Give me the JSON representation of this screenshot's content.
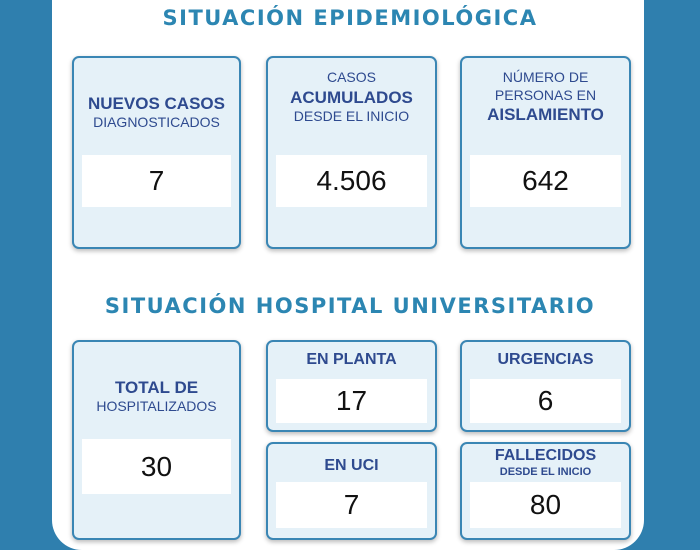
{
  "epidemiological": {
    "title": "SITUACIÓN EPIDEMIOLÓGICA",
    "cards": {
      "nuevos": {
        "line1": "NUEVOS CASOS",
        "line2": "DIAGNOSTICADOS",
        "value": "7"
      },
      "acumulados": {
        "line1": "CASOS",
        "line2": "ACUMULADOS",
        "line3": "DESDE EL INICIO",
        "value": "4.506"
      },
      "aislamiento": {
        "line1": "NÚMERO DE",
        "line2": "PERSONAS EN",
        "line3": "AISLAMIENTO",
        "value": "642"
      }
    }
  },
  "hospital": {
    "title": "SITUACIÓN HOSPITAL UNIVERSITARIO",
    "cards": {
      "total": {
        "line1": "TOTAL DE",
        "line2": "HOSPITALIZADOS",
        "value": "30"
      },
      "planta": {
        "label": "EN PLANTA",
        "value": "17"
      },
      "urgencias": {
        "label": "URGENCIAS",
        "value": "6"
      },
      "uci": {
        "label": "EN UCI",
        "value": "7"
      },
      "fallecidos": {
        "line1": "FALLECIDOS",
        "line2": "DESDE EL INICIO",
        "value": "80"
      }
    }
  }
}
